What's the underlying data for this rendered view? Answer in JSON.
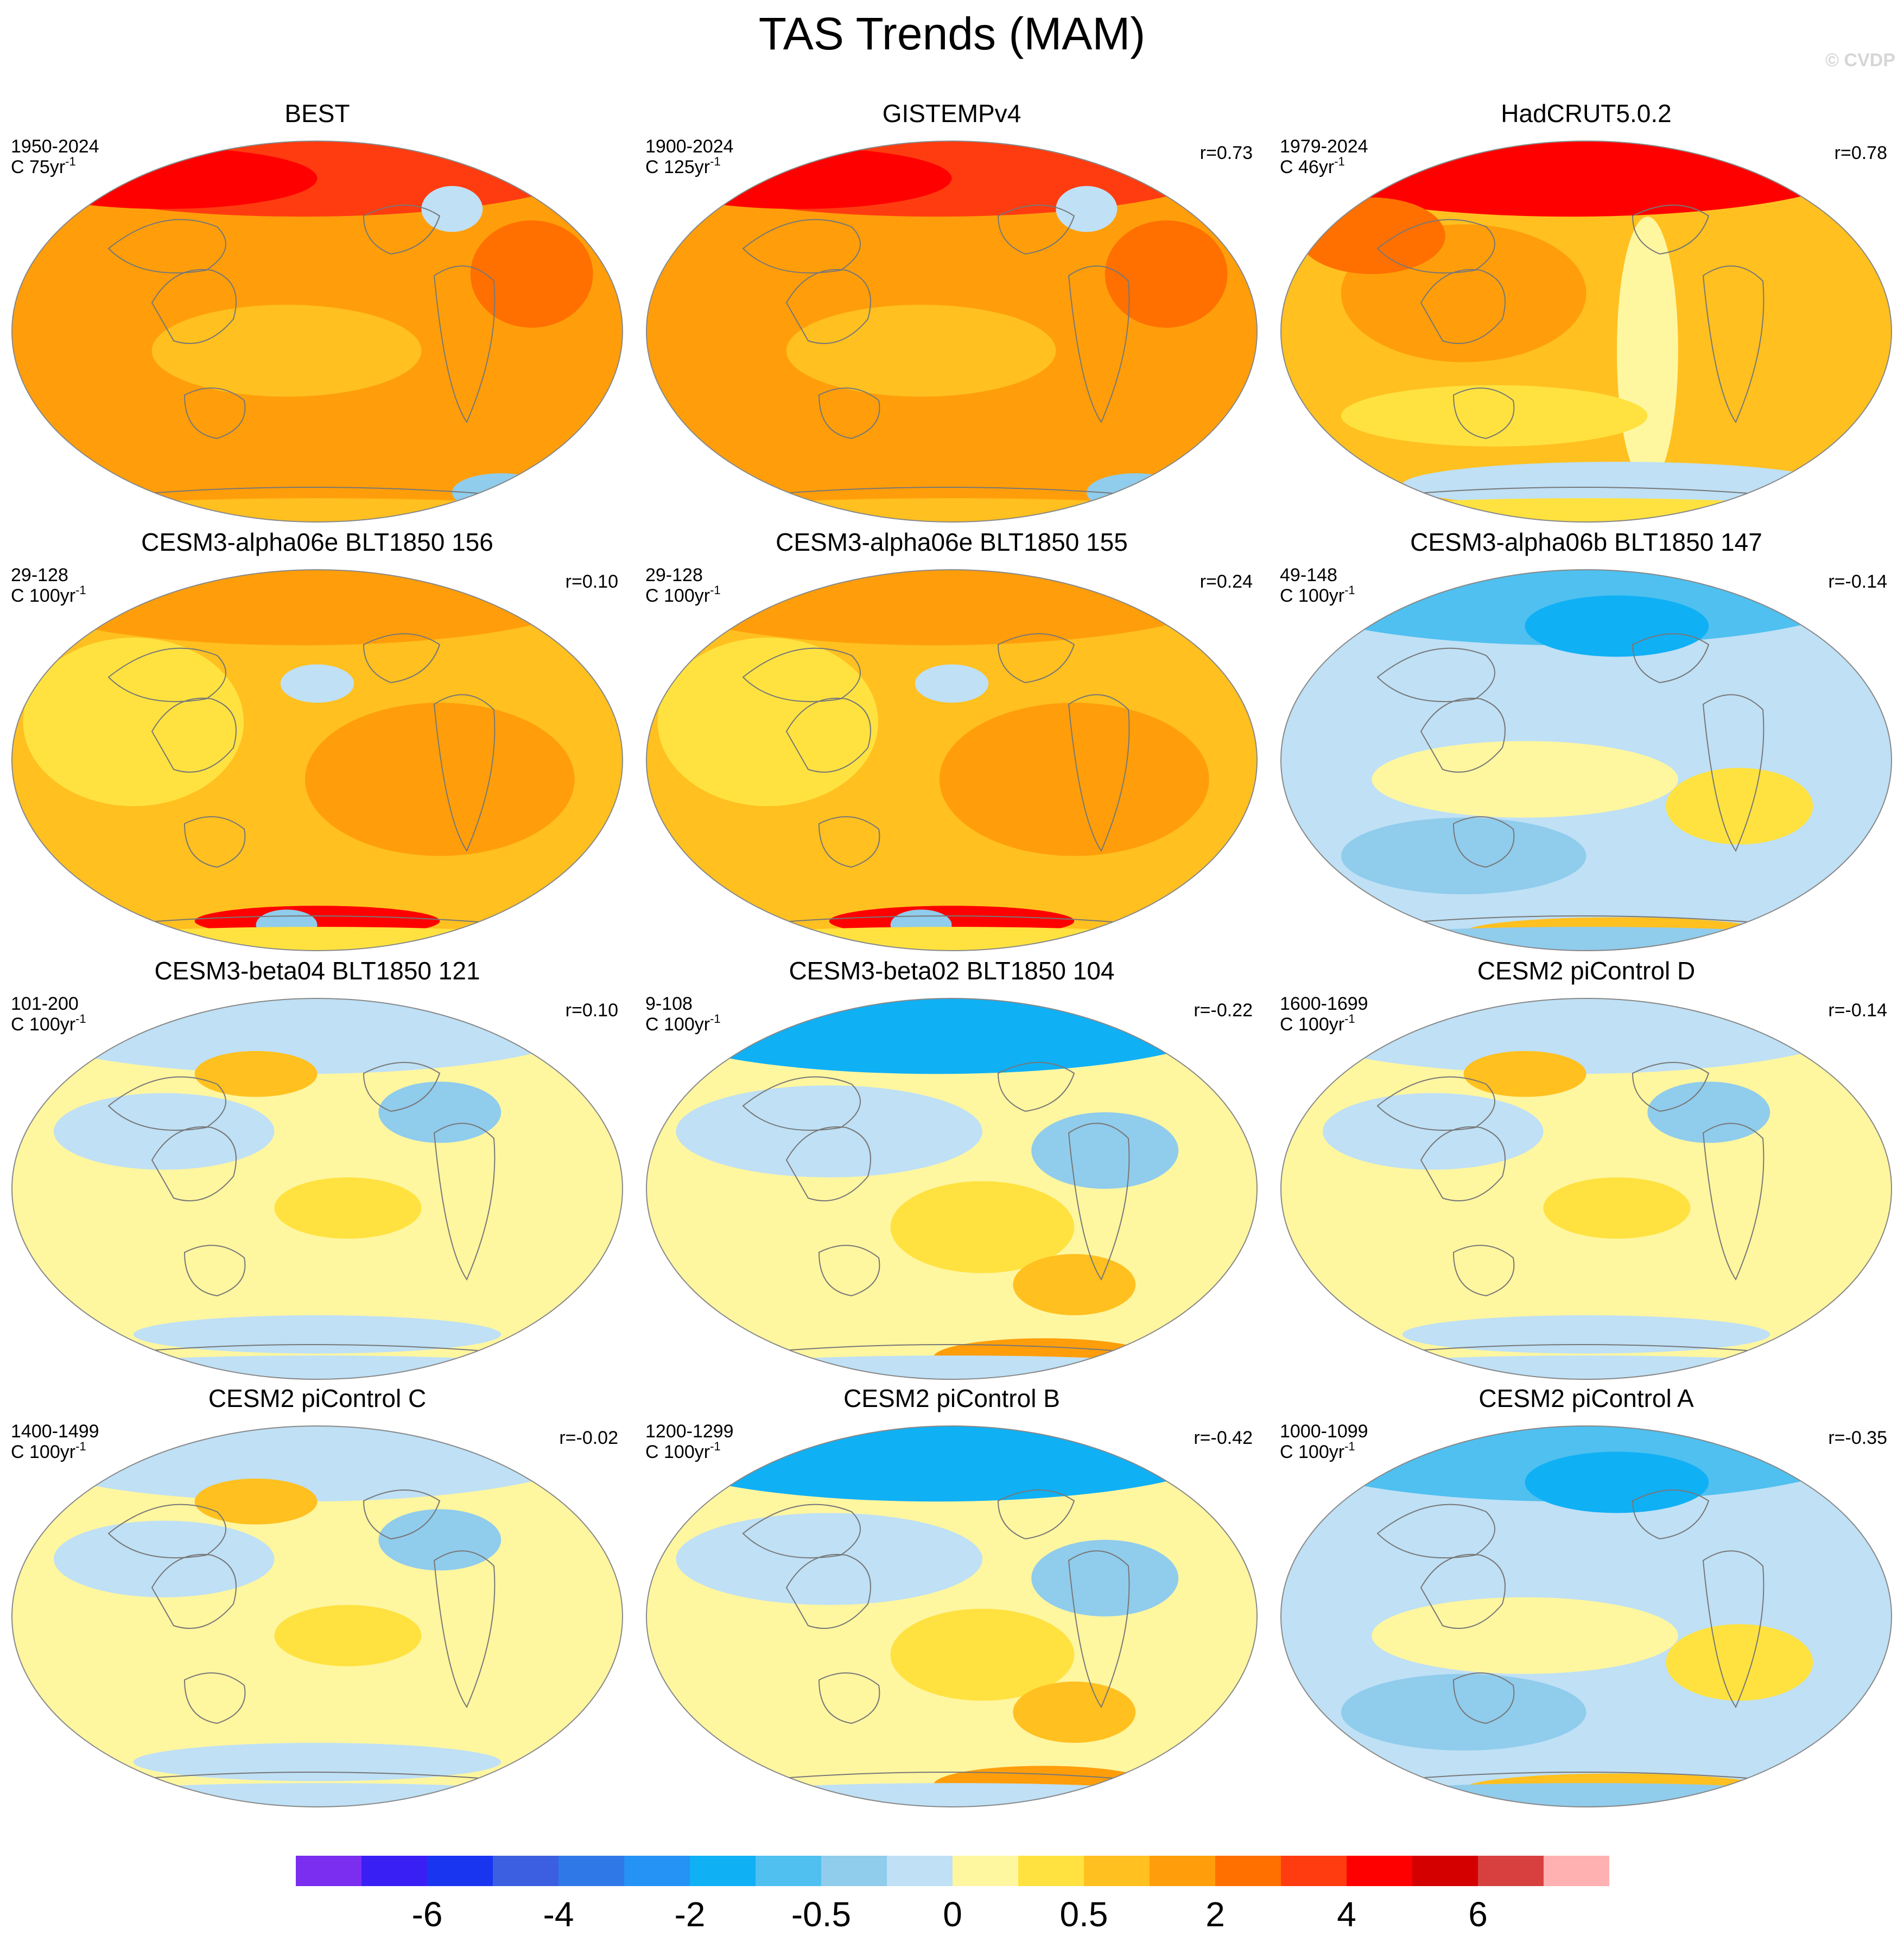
{
  "figure": {
    "title": "TAS Trends (MAM)",
    "watermark": "© CVDP"
  },
  "panels": [
    {
      "title": "BEST",
      "period": "1950-2024",
      "units": "C 75yr",
      "units_exp": "-1",
      "corr": "",
      "regime": "warm_obs"
    },
    {
      "title": "GISTEMPv4",
      "period": "1900-2024",
      "units": "C 125yr",
      "units_exp": "-1",
      "corr": "r=0.73",
      "regime": "warm_obs"
    },
    {
      "title": "HadCRUT5.0.2",
      "period": "1979-2024",
      "units": "C 46yr",
      "units_exp": "-1",
      "corr": "r=0.78",
      "regime": "warm_obs_mixed"
    },
    {
      "title": "CESM3-alpha06e BLT1850 156",
      "period": "29-128",
      "units": "C 100yr",
      "units_exp": "-1",
      "corr": "r=0.10",
      "regime": "warm_model"
    },
    {
      "title": "CESM3-alpha06e BLT1850 155",
      "period": "29-128",
      "units": "C 100yr",
      "units_exp": "-1",
      "corr": "r=0.24",
      "regime": "warm_model"
    },
    {
      "title": "CESM3-alpha06b BLT1850 147",
      "period": "49-148",
      "units": "C 100yr",
      "units_exp": "-1",
      "corr": "r=-0.14",
      "regime": "cool"
    },
    {
      "title": "CESM3-beta04 BLT1850 121",
      "period": "101-200",
      "units": "C 100yr",
      "units_exp": "-1",
      "corr": "r=0.10",
      "regime": "neutral"
    },
    {
      "title": "CESM3-beta02 BLT1850 104",
      "period": "9-108",
      "units": "C 100yr",
      "units_exp": "-1",
      "corr": "r=-0.22",
      "regime": "cool_north"
    },
    {
      "title": "CESM2 piControl D",
      "period": "1600-1699",
      "units": "C 100yr",
      "units_exp": "-1",
      "corr": "r=-0.14",
      "regime": "neutral"
    },
    {
      "title": "CESM2 piControl C",
      "period": "1400-1499",
      "units": "C 100yr",
      "units_exp": "-1",
      "corr": "r=-0.02",
      "regime": "neutral"
    },
    {
      "title": "CESM2 piControl B",
      "period": "1200-1299",
      "units": "C 100yr",
      "units_exp": "-1",
      "corr": "r=-0.42",
      "regime": "cool_north"
    },
    {
      "title": "CESM2 piControl A",
      "period": "1000-1099",
      "units": "C 100yr",
      "units_exp": "-1",
      "corr": "r=-0.35",
      "regime": "cool"
    }
  ],
  "colorbar": {
    "colors": [
      "#7b2df0",
      "#3a1ff5",
      "#1a35f0",
      "#3b5fe0",
      "#2f78e8",
      "#2592f5",
      "#10b0f5",
      "#4fc0f0",
      "#90ccec",
      "#bfe0f5",
      "#fff6a0",
      "#ffe240",
      "#ffc020",
      "#ff9e0a",
      "#ff7000",
      "#ff3c10",
      "#ff0000",
      "#d40000",
      "#d84040",
      "#ffb0b0"
    ],
    "labels": [
      {
        "text": "-6",
        "boundary": 2
      },
      {
        "text": "-4",
        "boundary": 4
      },
      {
        "text": "-2",
        "boundary": 6
      },
      {
        "text": "-0.5",
        "boundary": 8
      },
      {
        "text": "0",
        "boundary": 10
      },
      {
        "text": "0.5",
        "boundary": 12
      },
      {
        "text": "2",
        "boundary": 14
      },
      {
        "text": "4",
        "boundary": 16
      },
      {
        "text": "6",
        "boundary": 18
      }
    ]
  }
}
